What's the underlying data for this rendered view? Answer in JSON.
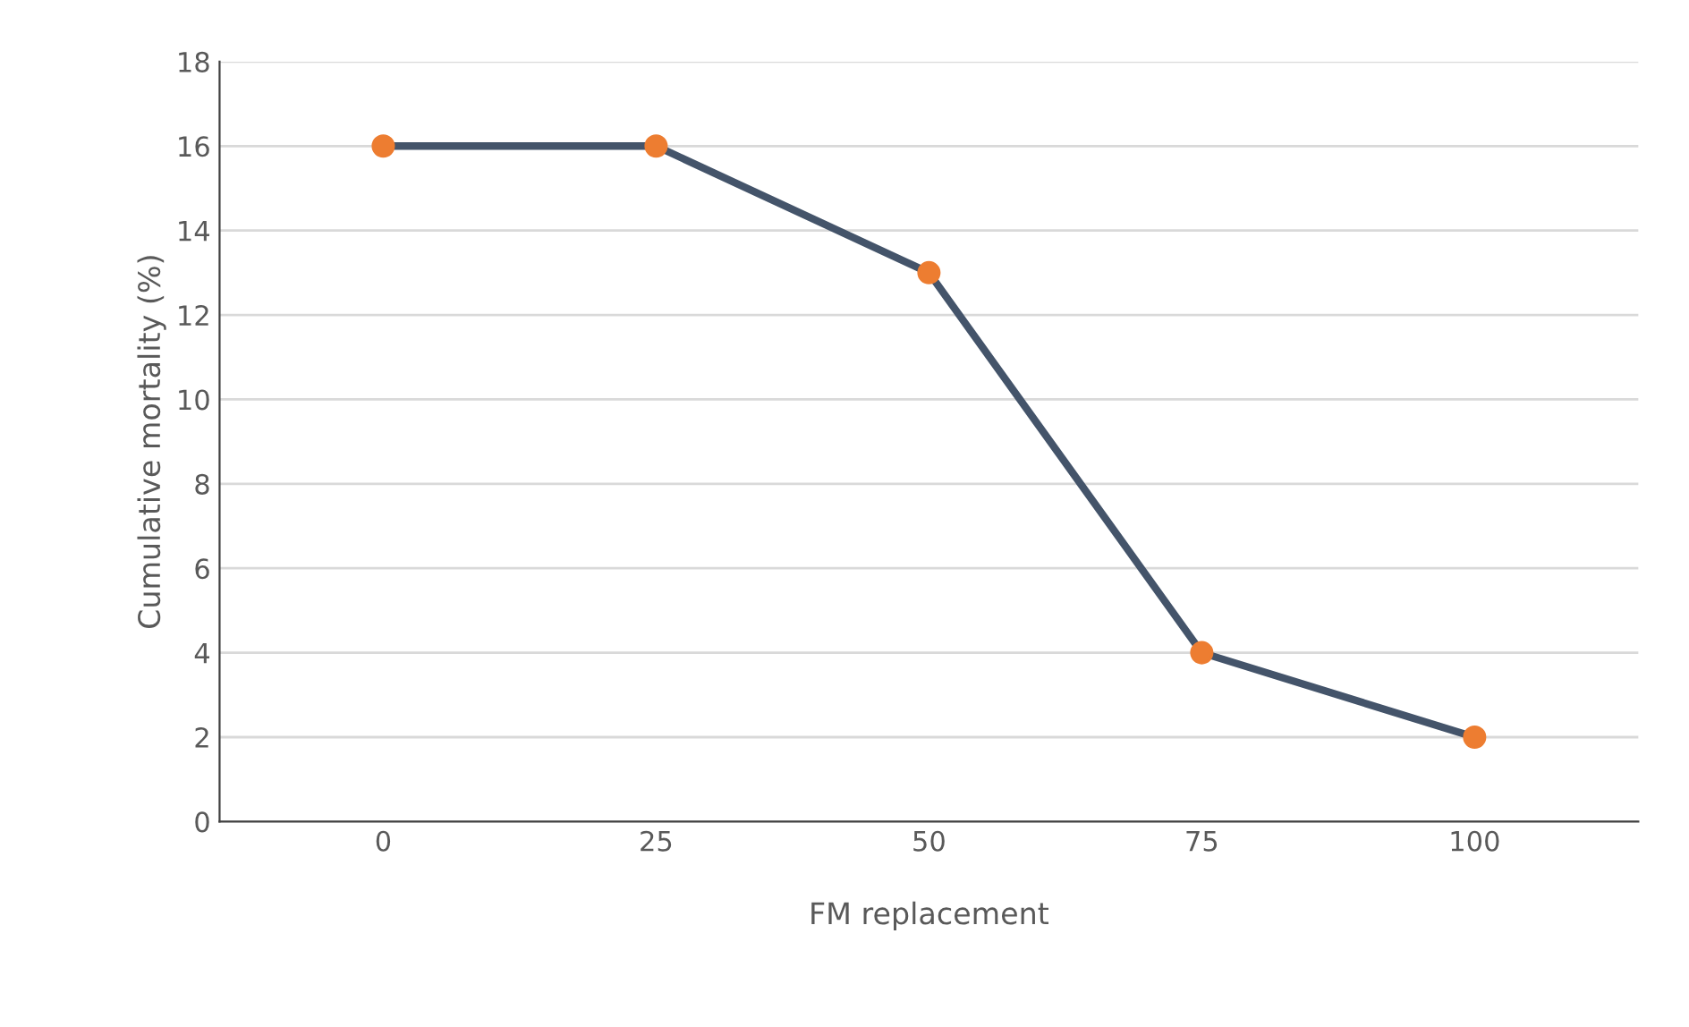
{
  "chart_data": {
    "type": "line",
    "xlabel": "FM replacement",
    "ylabel": "Cumulative mortality (%)",
    "categories": [
      "0",
      "25",
      "50",
      "75",
      "100"
    ],
    "series": [
      {
        "color": "#44546a",
        "colors": [
          "#ed7d31",
          "#ed7d31",
          "#ed7d31",
          "#ed7d31",
          "#ed7d31"
        ],
        "values": [
          16,
          16,
          13,
          4,
          2
        ]
      }
    ],
    "ylim": [
      0,
      18
    ],
    "yticks": [
      0,
      2,
      4,
      6,
      8,
      10,
      12,
      14,
      16,
      18
    ],
    "grid": "y",
    "legend": false,
    "marker": "circle",
    "line_style": "solid"
  }
}
